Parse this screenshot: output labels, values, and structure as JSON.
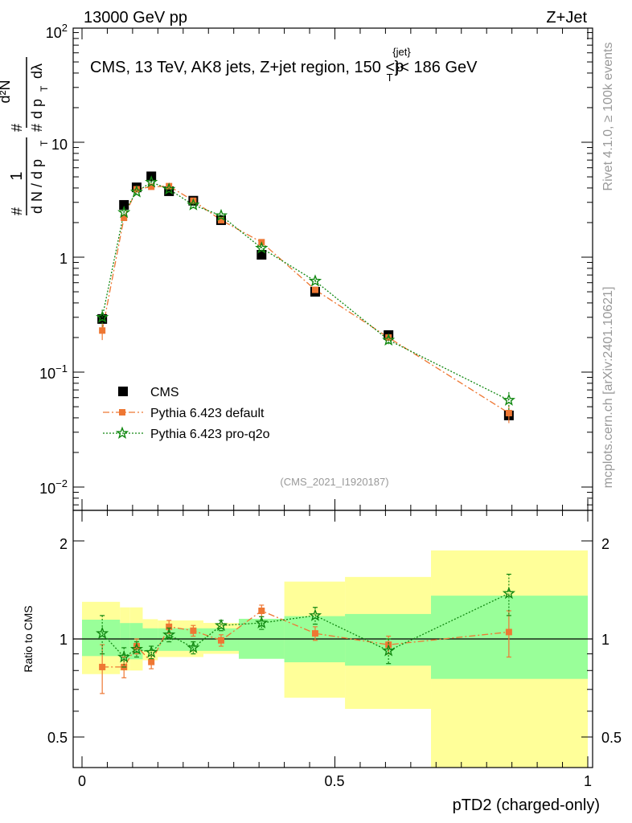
{
  "header": {
    "left": "13000 GeV pp",
    "right": "Z+Jet"
  },
  "plot_title": {
    "prefix": "CMS, 13 TeV, AK8 jets, Z+jet region, 150 <",
    "p": "p",
    "sub": "T",
    "sup": "{jet}",
    "suffix": "}< 186 GeV"
  },
  "analysis_id": "(CMS_2021_I1920187)",
  "side_labels": {
    "rivet": "Rivet 4.1.0, ≥ 100k events",
    "mcplots": "mcplots.cern.ch [arXiv:2401.10621]"
  },
  "ylabel_main": {
    "hash1": "#",
    "one": "1",
    "dN": "d N / d p",
    "T1": "T",
    "hash2": "#",
    "d2N": "d²N",
    "hash3": "#",
    "dpT": "d p",
    "T2": "T",
    "dl": "dλ"
  },
  "ylabel_ratio": "Ratio to CMS",
  "xlabel": "pTD2 (charged-only)",
  "legend": [
    {
      "name": "CMS"
    },
    {
      "name": "Pythia 6.423 default"
    },
    {
      "name": "Pythia 6.423 pro-q2o"
    }
  ],
  "colors": {
    "data": "#000000",
    "default": "#ee7733",
    "proq2o": "#118811",
    "band_inner": "#99ff99",
    "band_outer": "#ffff99",
    "side_text": "#999999"
  },
  "chart_data": [
    {
      "type": "scatter",
      "title": "CMS, 13 TeV, AK8 jets, Z+jet region, 150 < pT(jet) < 186 GeV",
      "xlabel": "pTD2 (charged-only)",
      "ylabel": "1/N dN/dpT dlambda",
      "yscale": "log",
      "xlim": [
        0,
        1
      ],
      "ylim": [
        0.007,
        100
      ],
      "y_ticks": [
        "10⁻²",
        "10⁻¹",
        "1",
        "10",
        "10²"
      ],
      "bins": [
        [
          0.0,
          0.075
        ],
        [
          0.075,
          0.095
        ],
        [
          0.095,
          0.12
        ],
        [
          0.12,
          0.15
        ],
        [
          0.15,
          0.19
        ],
        [
          0.19,
          0.24
        ],
        [
          0.24,
          0.31
        ],
        [
          0.31,
          0.4
        ],
        [
          0.4,
          0.52
        ],
        [
          0.52,
          0.69
        ],
        [
          0.69,
          1.0
        ]
      ],
      "x": [
        0.04,
        0.083,
        0.108,
        0.137,
        0.172,
        0.22,
        0.275,
        0.355,
        0.461,
        0.606,
        0.844
      ],
      "series": [
        {
          "name": "CMS",
          "marker": "square",
          "values": [
            0.29,
            2.85,
            4.05,
            5.05,
            3.75,
            3.1,
            2.1,
            1.05,
            0.5,
            0.21,
            0.042
          ]
        },
        {
          "name": "Pythia 6.423 default",
          "marker": "square-small",
          "line": "dash-dot",
          "values": [
            0.23,
            2.2,
            3.9,
            4.1,
            4.15,
            3.1,
            2.1,
            1.35,
            0.52,
            0.2,
            0.044
          ],
          "errors": [
            0.04,
            0.1,
            0.1,
            0.1,
            0.1,
            0.1,
            0.05,
            0.04,
            0.02,
            0.01,
            0.008
          ]
        },
        {
          "name": "Pythia 6.423 pro-q2o",
          "marker": "star",
          "line": "dotted",
          "values": [
            0.3,
            2.45,
            3.7,
            4.5,
            3.9,
            2.85,
            2.3,
            1.2,
            0.62,
            0.19,
            0.057
          ],
          "errors": [
            0.05,
            0.1,
            0.1,
            0.1,
            0.1,
            0.1,
            0.05,
            0.04,
            0.02,
            0.015,
            0.01
          ]
        }
      ]
    },
    {
      "type": "scatter",
      "ylabel": "Ratio to CMS",
      "xlabel": "pTD2 (charged-only)",
      "yscale": "log",
      "xlim": [
        0,
        1
      ],
      "ylim": [
        0.4,
        2.3
      ],
      "y_ticks": [
        "0.5",
        "1",
        "2"
      ],
      "x_ticks": [
        "0",
        "0.5",
        "1"
      ],
      "bands": {
        "inner": [
          [
            0.886,
            1.146
          ],
          [
            0.866,
            1.119
          ],
          [
            0.866,
            1.119
          ],
          [
            0.919,
            1.078
          ],
          [
            0.919,
            1.078
          ],
          [
            0.919,
            1.078
          ],
          [
            0.919,
            1.078
          ],
          [
            0.869,
            1.153
          ],
          [
            0.848,
            1.175
          ],
          [
            0.828,
            1.193
          ],
          [
            0.754,
            1.358
          ]
        ],
        "outer": [
          [
            0.78,
            1.3
          ],
          [
            0.8,
            1.25
          ],
          [
            0.8,
            1.25
          ],
          [
            0.86,
            1.15
          ],
          [
            0.88,
            1.14
          ],
          [
            0.88,
            1.14
          ],
          [
            0.9,
            1.12
          ],
          [
            0.9,
            1.12
          ],
          [
            0.66,
            1.5
          ],
          [
            0.61,
            1.55
          ],
          [
            0.39,
            1.87
          ]
        ]
      },
      "x": [
        0.04,
        0.083,
        0.108,
        0.137,
        0.172,
        0.22,
        0.275,
        0.355,
        0.461,
        0.606,
        0.844
      ],
      "series": [
        {
          "name": "Pythia 6.423 default",
          "values": [
            0.82,
            0.82,
            0.95,
            0.85,
            1.09,
            1.06,
            0.99,
            1.22,
            1.04,
            0.96,
            1.05
          ],
          "errors": [
            0.14,
            0.06,
            0.05,
            0.04,
            0.05,
            0.04,
            0.04,
            0.05,
            0.05,
            0.06,
            0.17
          ]
        },
        {
          "name": "Pythia 6.423 pro-q2o",
          "values": [
            1.04,
            0.88,
            0.93,
            0.91,
            1.03,
            0.94,
            1.1,
            1.12,
            1.18,
            0.92,
            1.38
          ],
          "errors": [
            0.14,
            0.06,
            0.05,
            0.04,
            0.05,
            0.04,
            0.04,
            0.05,
            0.07,
            0.08,
            0.2
          ]
        }
      ]
    }
  ]
}
